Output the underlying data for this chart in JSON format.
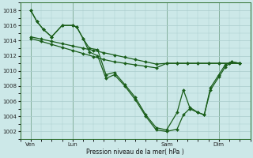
{
  "background_color": "#cce8e8",
  "grid_color": "#aacccc",
  "line_color": "#1a5e1a",
  "marker_size": 2.0,
  "line_width": 0.9,
  "xlabel_text": "Pression niveau de la mer( hPa )",
  "ylim": [
    1001.0,
    1019.0
  ],
  "xlim": [
    -0.5,
    10.5
  ],
  "ytick_vals": [
    1002,
    1004,
    1006,
    1008,
    1010,
    1012,
    1014,
    1016,
    1018
  ],
  "xtick_positions": [
    0,
    2,
    6.5,
    9
  ],
  "xtick_labels": [
    "Ven",
    "Lun",
    "Sam",
    "Dim"
  ],
  "vline_positions": [
    0,
    2,
    6.5,
    9
  ],
  "s1_x": [
    0,
    0.3,
    0.6,
    1.0,
    1.5,
    2.0,
    2.2,
    2.5,
    2.8,
    3.2,
    3.6,
    4.0,
    4.5,
    5.0,
    5.5,
    6.0,
    6.5,
    7.0,
    7.3,
    7.6,
    8.0,
    8.3,
    8.6,
    9.0,
    9.3,
    9.6,
    10.0
  ],
  "s1_y": [
    1018,
    1016.5,
    1015.5,
    1014.5,
    1016.0,
    1016.0,
    1015.8,
    1014.3,
    1013.0,
    1012.8,
    1009.5,
    1009.8,
    1008.2,
    1006.5,
    1004.2,
    1002.5,
    1002.2,
    1004.5,
    1007.5,
    1005.2,
    1004.5,
    1004.2,
    1007.8,
    1009.5,
    1010.8,
    1011.2,
    1011.0
  ],
  "s2_x": [
    0,
    0.3,
    0.6,
    1.0,
    1.5,
    2.0,
    2.2,
    2.5,
    2.8,
    3.2,
    3.6,
    4.0,
    4.5,
    5.0,
    5.5,
    6.0,
    6.5,
    7.0,
    7.3,
    7.6,
    8.0,
    8.3,
    8.6,
    9.0,
    9.3,
    9.6,
    10.0
  ],
  "s2_y": [
    1018,
    1016.5,
    1015.5,
    1014.5,
    1016.0,
    1016.0,
    1015.8,
    1014.3,
    1012.5,
    1012.0,
    1009.0,
    1009.5,
    1008.0,
    1006.2,
    1004.0,
    1002.2,
    1002.0,
    1002.3,
    1004.2,
    1005.0,
    1004.5,
    1004.2,
    1007.5,
    1009.2,
    1010.5,
    1011.2,
    1011.0
  ],
  "s3_x": [
    0,
    0.5,
    1.0,
    1.5,
    2.0,
    2.5,
    3.0,
    3.5,
    4.0,
    4.5,
    5.0,
    5.5,
    6.0,
    6.5,
    7.0,
    7.5,
    8.0,
    8.5,
    9.0,
    9.5,
    10.0
  ],
  "s3_y": [
    1014.5,
    1014.2,
    1013.9,
    1013.6,
    1013.3,
    1013.0,
    1012.7,
    1012.4,
    1012.1,
    1011.8,
    1011.5,
    1011.2,
    1010.9,
    1011.0,
    1011.0,
    1011.0,
    1011.0,
    1011.0,
    1011.0,
    1011.0,
    1011.0
  ],
  "s4_x": [
    0,
    0.5,
    1.0,
    1.5,
    2.0,
    2.5,
    3.0,
    3.5,
    4.0,
    4.5,
    5.0,
    5.5,
    6.0,
    6.5,
    7.0,
    7.5,
    8.0,
    8.5,
    9.0,
    9.5,
    10.0
  ],
  "s4_y": [
    1014.3,
    1013.9,
    1013.5,
    1013.1,
    1012.7,
    1012.3,
    1011.9,
    1011.5,
    1011.2,
    1011.0,
    1010.8,
    1010.6,
    1010.4,
    1011.0,
    1011.0,
    1011.0,
    1011.0,
    1011.0,
    1011.0,
    1011.0,
    1011.0
  ]
}
